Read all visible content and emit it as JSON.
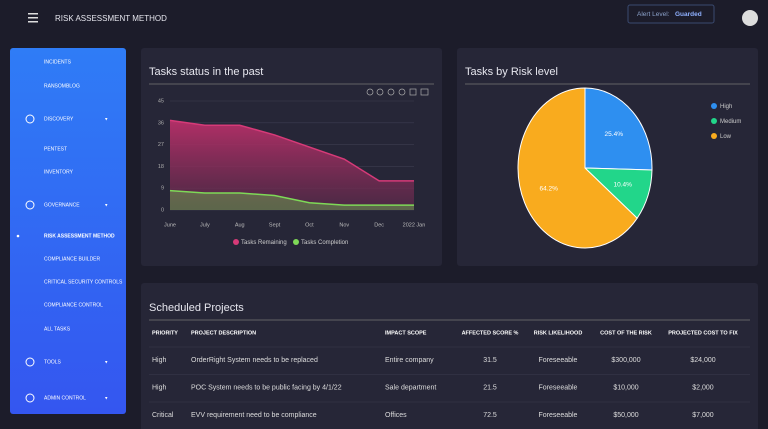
{
  "header": {
    "title": "RISK ASSESSMENT METHOD",
    "alert_label": "Alert Level:",
    "alert_value": "Guarded"
  },
  "sidebar": {
    "items": [
      "INCIDENTS",
      "RANSOMBLOG",
      "DISCOVERY",
      "PENTEST",
      "INVENTORY",
      "GOVERNANCE",
      "RISK ASSESSMENT METHOD",
      "COMPLIANCE BUILDER",
      "CRITICAL SECURITY CONTROLS",
      "COMPLIANCE CONTROL",
      "ALL TASKS",
      "TOOLS",
      "ADMIN CONTROL"
    ]
  },
  "chart_data": [
    {
      "type": "area",
      "title": "Tasks status in the past",
      "categories": [
        "June",
        "July",
        "Aug",
        "Sept",
        "Oct",
        "Nov",
        "Dec",
        "2022 Jan"
      ],
      "series": [
        {
          "name": "Tasks Remaining",
          "color": "#d63a78",
          "values": [
            37,
            35,
            35,
            31,
            26,
            21,
            12,
            12
          ]
        },
        {
          "name": "Tasks Completion",
          "color": "#7ed957",
          "values": [
            8,
            7,
            7,
            6,
            3,
            2,
            2,
            2
          ]
        }
      ],
      "ylim": [
        0,
        45
      ],
      "yticks": [
        0,
        9,
        18,
        27,
        36,
        45
      ],
      "grid": true,
      "legend": "bottom"
    },
    {
      "type": "pie",
      "title": "Tasks by Risk level",
      "categories": [
        "High",
        "Medium",
        "Low"
      ],
      "values": [
        25.4,
        10.4,
        64.2
      ],
      "value_labels": [
        "25.4%",
        "10.4%",
        "64.2%"
      ],
      "colors": [
        "#2e8ff0",
        "#22d68a",
        "#f9ab1e"
      ],
      "legend": "right"
    }
  ],
  "table": {
    "title": "Scheduled Projects",
    "columns": [
      "PRIORITY",
      "PROJECT DESCRIPTION",
      "IMPACT SCOPE",
      "AFFECTED SCORE %",
      "RISK LIKELIHOOD",
      "COST OF THE RISK",
      "PROJECTED COST TO FIX"
    ],
    "rows": [
      [
        "High",
        "OrderRight System needs to be replaced",
        "Entire company",
        "31.5",
        "Foreseeable",
        "$300,000",
        "$24,000"
      ],
      [
        "High",
        "POC System needs to be public facing by 4/1/22",
        "Sale department",
        "21.5",
        "Foreseeable",
        "$10,000",
        "$2,000"
      ],
      [
        "Critical",
        "EVV requirement need to be compliance",
        "Offices",
        "72.5",
        "Foreseeable",
        "$50,000",
        "$7,000"
      ]
    ]
  }
}
